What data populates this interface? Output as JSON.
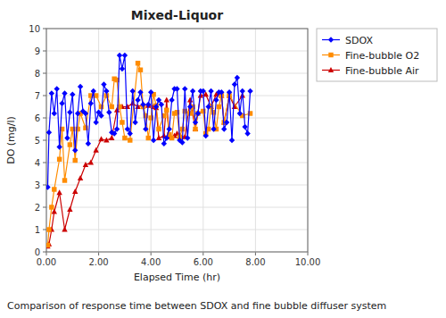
{
  "chart_data": {
    "type": "line",
    "title": "Mixed-Liquor",
    "x_label": "Elapsed Time (hr)",
    "y_label": "DO (mg/l)",
    "caption": "Comparison of response time between SDOX and fine bubble diffuser system",
    "xlim": [
      0,
      10
    ],
    "ylim": [
      0,
      10
    ],
    "xticks": [
      {
        "value": 0.0,
        "label": "0.00"
      },
      {
        "value": 2.0,
        "label": "2.00"
      },
      {
        "value": 4.0,
        "label": "4.00"
      },
      {
        "value": 6.0,
        "label": "6.00"
      },
      {
        "value": 8.0,
        "label": "8.00"
      },
      {
        "value": 10.0,
        "label": "10.00"
      }
    ],
    "yticks": [
      0,
      1,
      2,
      3,
      4,
      5,
      6,
      7,
      8,
      9,
      10
    ],
    "grid": true,
    "legend": "right",
    "series": [
      {
        "name": "SDOX",
        "color": "#0000FF",
        "marker": "diamond",
        "x": [
          0.05,
          0.1,
          0.2,
          0.3,
          0.4,
          0.5,
          0.6,
          0.7,
          0.8,
          0.9,
          1.0,
          1.1,
          1.2,
          1.3,
          1.4,
          1.5,
          1.6,
          1.7,
          1.8,
          1.9,
          2.0,
          2.1,
          2.2,
          2.3,
          2.4,
          2.5,
          2.6,
          2.7,
          2.8,
          2.9,
          3.0,
          3.1,
          3.2,
          3.3,
          3.4,
          3.5,
          3.6,
          3.7,
          3.8,
          3.9,
          4.0,
          4.1,
          4.2,
          4.3,
          4.4,
          4.5,
          4.6,
          4.7,
          4.8,
          4.9,
          5.0,
          5.1,
          5.2,
          5.3,
          5.4,
          5.5,
          5.6,
          5.7,
          5.8,
          5.9,
          6.0,
          6.1,
          6.2,
          6.3,
          6.4,
          6.5,
          6.6,
          6.7,
          6.8,
          6.9,
          7.0,
          7.1,
          7.2,
          7.3,
          7.4,
          7.5,
          7.6,
          7.7,
          7.8
        ],
        "values": [
          2.9,
          5.35,
          7.1,
          6.2,
          7.3,
          4.7,
          6.65,
          7.1,
          5.1,
          6.25,
          7.05,
          4.55,
          6.2,
          7.4,
          6.3,
          6.2,
          4.85,
          6.65,
          7.2,
          5.8,
          6.25,
          6.1,
          7.5,
          7.2,
          6.25,
          5.35,
          5.3,
          5.5,
          8.8,
          8.2,
          8.8,
          5.5,
          5.3,
          7.2,
          5.8,
          6.8,
          7.15,
          6.6,
          5.5,
          6.6,
          7.15,
          5.0,
          6.5,
          6.8,
          6.6,
          4.85,
          5.1,
          5.5,
          6.8,
          7.3,
          7.3,
          5.0,
          4.9,
          7.3,
          5.1,
          6.5,
          7.2,
          5.8,
          6.2,
          7.2,
          7.2,
          5.2,
          6.5,
          7.2,
          5.5,
          6.8,
          7.15,
          7.15,
          5.5,
          5.8,
          7.15,
          5.0,
          7.5,
          7.8,
          6.2,
          7.2,
          5.6,
          5.3,
          7.2
        ]
      },
      {
        "name": "Fine-bubble O2",
        "color": "#FF8C00",
        "marker": "square",
        "x": [
          0.05,
          0.1,
          0.2,
          0.3,
          0.5,
          0.6,
          0.7,
          0.9,
          1.0,
          1.1,
          1.2,
          1.3,
          1.5,
          1.7,
          1.9,
          2.1,
          2.3,
          2.5,
          2.6,
          2.7,
          2.8,
          2.9,
          3.0,
          3.2,
          3.5,
          3.6,
          3.7,
          3.8,
          3.9,
          4.0,
          4.1,
          4.2,
          4.3,
          4.5,
          4.6,
          4.7,
          4.8,
          4.9,
          5.0,
          5.1,
          5.2,
          5.3,
          5.5,
          5.6,
          5.7,
          5.8,
          6.0,
          6.1,
          6.2,
          6.3,
          6.4,
          6.5,
          6.6,
          6.7,
          6.8,
          7.0,
          7.5,
          7.8
        ],
        "values": [
          0.3,
          1.0,
          2.0,
          2.8,
          4.15,
          5.5,
          3.2,
          4.8,
          5.5,
          4.1,
          5.5,
          6.2,
          5.55,
          7.0,
          7.0,
          6.5,
          7.0,
          6.5,
          7.75,
          7.7,
          6.5,
          5.8,
          5.1,
          5.0,
          8.45,
          8.15,
          6.5,
          6.1,
          5.1,
          6.0,
          7.05,
          6.55,
          5.5,
          6.1,
          6.35,
          5.25,
          5.1,
          6.2,
          6.25,
          5.15,
          5.5,
          6.3,
          6.2,
          6.5,
          5.5,
          6.2,
          6.3,
          5.3,
          5.5,
          6.5,
          6.25,
          5.5,
          6.5,
          7.0,
          5.8,
          7.0,
          6.1,
          6.2
        ]
      },
      {
        "name": "Fine-bubble Air",
        "color": "#CC0000",
        "marker": "triangle",
        "x": [
          0.05,
          0.1,
          0.2,
          0.3,
          0.5,
          0.7,
          0.9,
          1.1,
          1.3,
          1.5,
          1.7,
          1.9,
          2.1,
          2.3,
          2.5,
          2.7,
          2.9,
          3.1,
          3.3,
          3.5,
          3.7,
          3.9,
          4.1,
          4.2,
          4.3,
          4.5,
          4.6,
          4.7,
          4.9,
          5.0,
          5.1,
          5.3,
          5.5,
          5.7,
          5.9,
          6.1,
          6.3,
          6.5,
          6.7,
          6.8,
          7.0,
          7.2,
          7.5
        ],
        "values": [
          0.25,
          0.35,
          1.0,
          1.8,
          2.65,
          1.0,
          1.9,
          2.7,
          3.3,
          3.9,
          4.0,
          4.55,
          5.05,
          5.0,
          5.1,
          6.35,
          6.5,
          6.5,
          6.65,
          6.5,
          6.6,
          6.55,
          6.5,
          6.45,
          5.1,
          5.2,
          6.8,
          5.15,
          5.2,
          5.3,
          5.2,
          5.15,
          6.8,
          5.5,
          7.0,
          7.05,
          6.5,
          7.05,
          7.0,
          5.8,
          7.0,
          6.5,
          7.0
        ]
      }
    ]
  }
}
